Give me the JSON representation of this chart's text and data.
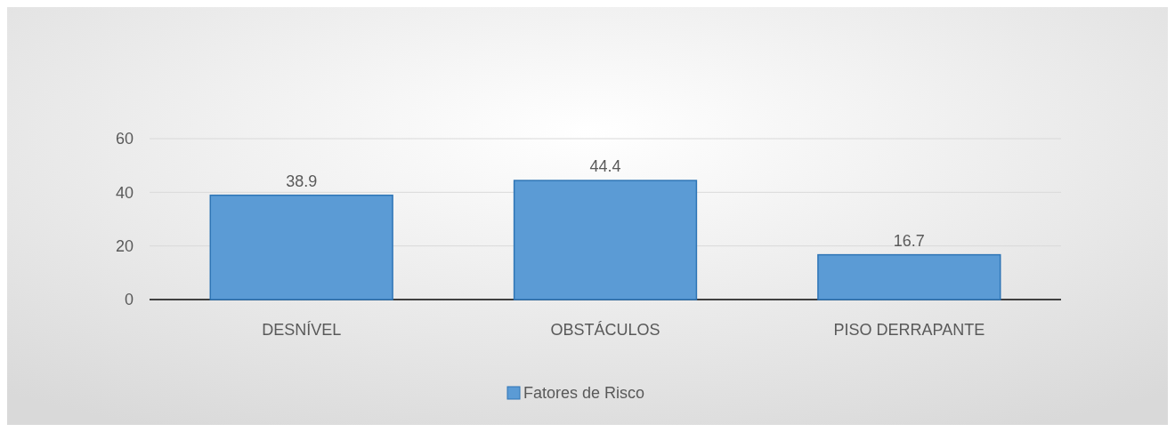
{
  "chart_data": {
    "type": "bar",
    "categories": [
      "DESNÍVEL",
      "OBSTÁCULOS",
      "PISO DERRAPANTE"
    ],
    "series": [
      {
        "name": "Fatores de Risco",
        "color": "#5b9bd5",
        "values": [
          38.9,
          44.4,
          16.7
        ]
      }
    ],
    "ylim": [
      0,
      60
    ],
    "yticks": [
      0,
      20,
      40,
      60
    ],
    "grid": "y",
    "data_labels": true,
    "legend": "bottom"
  }
}
